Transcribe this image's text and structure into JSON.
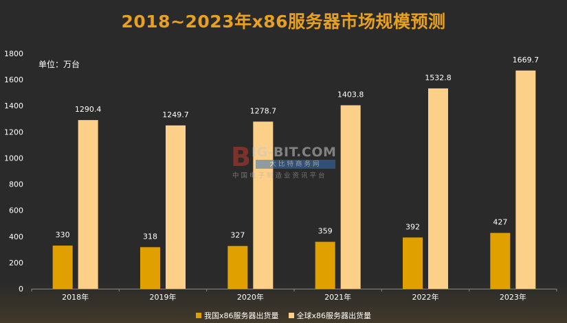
{
  "chart_data": {
    "type": "bar",
    "title": "2018~2023年x86服务器市场规模预测",
    "unit_label": "单位：万台",
    "categories": [
      "2018年",
      "2019年",
      "2020年",
      "2021年",
      "2022年",
      "2023年"
    ],
    "series": [
      {
        "name": "我国x86服务器出货量",
        "values": [
          330,
          318,
          327,
          359,
          392,
          427
        ],
        "color": "#e0a000"
      },
      {
        "name": "全球x86服务器出货量",
        "values": [
          1290.4,
          1249.7,
          1278.7,
          1403.8,
          1532.8,
          1669.7
        ],
        "color": "#fdd08a"
      }
    ],
    "ylim": [
      0,
      1800
    ],
    "yticks": [
      "0",
      "200",
      "400",
      "600",
      "800",
      "1000",
      "1200",
      "1400",
      "1600",
      "1800"
    ],
    "ytick_values": [
      0,
      200,
      400,
      600,
      800,
      1000,
      1200,
      1400,
      1600,
      1800
    ],
    "data_labels": [
      [
        "330",
        "318",
        "327",
        "359",
        "392",
        "427"
      ],
      [
        "1290.4",
        "1249.7",
        "1278.7",
        "1403.8",
        "1532.8",
        "1669.7"
      ]
    ],
    "grid": false,
    "legend_position": "bottom"
  },
  "watermark": {
    "logo_letter": "B",
    "main_text": "IG-BIT.COM",
    "sub_text": "大比特商务网",
    "foot_text": "中国电子制造业资讯平台",
    "logo_color": "#c0392b",
    "sub_color": "#3a6fb0"
  }
}
